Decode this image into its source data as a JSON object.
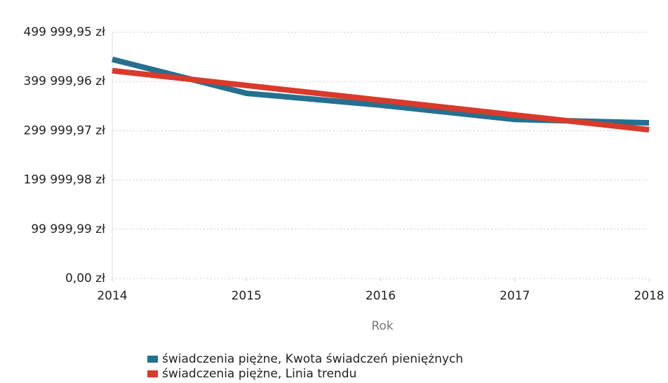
{
  "chart_data": {
    "type": "line",
    "x": [
      2014,
      2015,
      2016,
      2017,
      2018
    ],
    "xlim": [
      2014,
      2018
    ],
    "xticks": [
      2014,
      2015,
      2016,
      2017,
      2018
    ],
    "x_label": "Rok",
    "ylim": [
      0,
      499999.95
    ],
    "yticks": [
      {
        "value": 0,
        "label": "0,00 zł"
      },
      {
        "value": 99999.99,
        "label": "99 999,99 zł"
      },
      {
        "value": 199999.98,
        "label": "199 999,98 zł"
      },
      {
        "value": 299999.97,
        "label": "299 999,97 zł"
      },
      {
        "value": 399999.96,
        "label": "399 999,96 zł"
      },
      {
        "value": 499999.95,
        "label": "499 999,95 zł"
      }
    ],
    "grid": true,
    "legend": "bottom",
    "series": [
      {
        "name": "świadczenia piężne, Kwota świadczeń pieniężnych",
        "color": "#25708f",
        "values": [
          445000,
          376000,
          352000,
          323000,
          316000
        ]
      },
      {
        "name": "świadczenia piężne, Linia trendu",
        "color": "#d93a2b",
        "values": [
          422000,
          392000,
          362000,
          332000,
          302000
        ]
      }
    ]
  }
}
